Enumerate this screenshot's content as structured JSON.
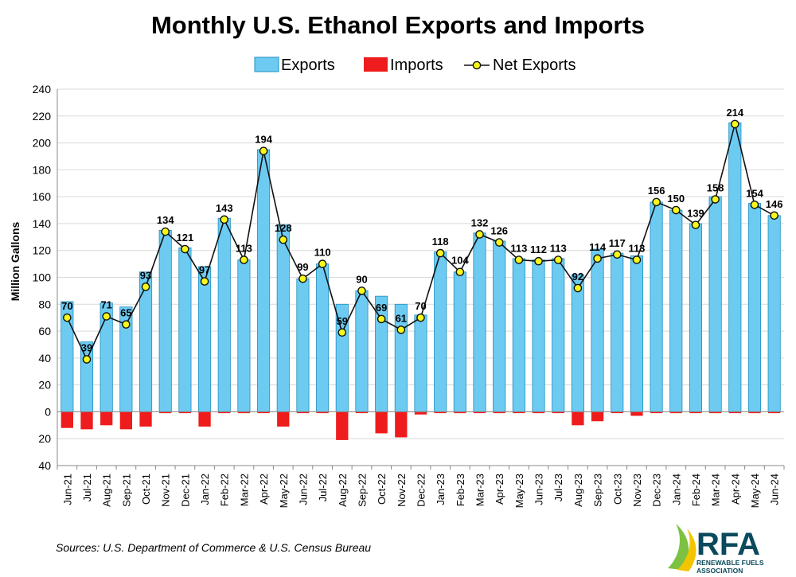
{
  "title": "Monthly U.S. Ethanol Exports and Imports",
  "source": "Sources: U.S. Department of Commerce & U.S. Census Bureau",
  "logo": {
    "text": "RFA",
    "line1": "RENEWABLE FUELS",
    "line2": "ASSOCIATION"
  },
  "colors": {
    "exports_fill": "#6dcbf2",
    "exports_stroke": "#1f8fc0",
    "imports_fill": "#ee1c1c",
    "line": "#111111",
    "marker_fill": "#f7f71a",
    "grid": "#d9d9d9",
    "logo_text": "#0a4a5c",
    "logo_green": "#7cc142",
    "logo_yellow": "#f2c500"
  },
  "chart_data": {
    "type": "bar",
    "ylabel": "Million Gallons",
    "xlabel": "",
    "ylim": [
      -40,
      240
    ],
    "yticks": [
      -40,
      -20,
      0,
      20,
      40,
      60,
      80,
      100,
      120,
      140,
      160,
      180,
      200,
      220,
      240
    ],
    "ytick_labels": [
      "40",
      "20",
      "0",
      "20",
      "40",
      "60",
      "80",
      "100",
      "120",
      "140",
      "160",
      "180",
      "200",
      "220",
      "240"
    ],
    "grid": "horizontal",
    "legend_position": "top-center",
    "categories": [
      "Jun-21",
      "Jul-21",
      "Aug-21",
      "Sep-21",
      "Oct-21",
      "Nov-21",
      "Dec-21",
      "Jan-22",
      "Feb-22",
      "Mar-22",
      "Apr-22",
      "May-22",
      "Jun-22",
      "Jul-22",
      "Aug-22",
      "Sep-22",
      "Oct-22",
      "Nov-22",
      "Dec-22",
      "Jan-23",
      "Feb-23",
      "Mar-23",
      "Apr-23",
      "May-23",
      "Jun-23",
      "Jul-23",
      "Aug-23",
      "Sep-23",
      "Oct-23",
      "Nov-23",
      "Dec-23",
      "Jan-24",
      "Feb-24",
      "Mar-24",
      "Apr-24",
      "May-24",
      "Jun-24"
    ],
    "series": [
      {
        "name": "Exports",
        "kind": "bar",
        "values": [
          82,
          52,
          81,
          78,
          104,
          135,
          122,
          108,
          144,
          113,
          195,
          139,
          99,
          110,
          80,
          90,
          86,
          80,
          72,
          119,
          104,
          133,
          127,
          114,
          113,
          114,
          102,
          121,
          118,
          116,
          156,
          150,
          140,
          160,
          215,
          155,
          146
        ]
      },
      {
        "name": "Imports",
        "kind": "bar",
        "values": [
          -12,
          -13,
          -10,
          -13,
          -11,
          -1,
          -1,
          -11,
          -1,
          -1,
          -1,
          -11,
          -1,
          -1,
          -21,
          -1,
          -16,
          -19,
          -2,
          -1,
          -1,
          -1,
          -1,
          -1,
          -1,
          -1,
          -10,
          -7,
          -1,
          -3,
          -1,
          -1,
          -1,
          -1,
          -1,
          -1,
          -1
        ]
      },
      {
        "name": "Net Exports",
        "kind": "line",
        "values": [
          70,
          39,
          71,
          65,
          93,
          134,
          121,
          97,
          143,
          113,
          194,
          128,
          99,
          110,
          59,
          90,
          69,
          61,
          70,
          118,
          104,
          132,
          126,
          113,
          112,
          113,
          92,
          114,
          117,
          113,
          156,
          150,
          139,
          158,
          214,
          154,
          146
        ]
      }
    ]
  }
}
